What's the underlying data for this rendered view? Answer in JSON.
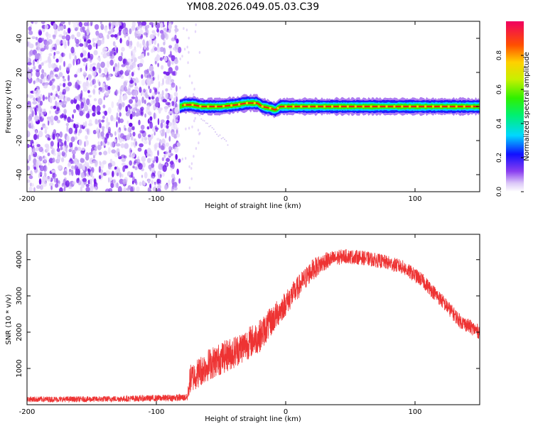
{
  "title": "YM08.2026.049.05.03.C39",
  "chart_data": [
    {
      "type": "heatmap",
      "name": "spectrogram",
      "xlabel": "Height of straight line (km)",
      "ylabel": "Frequency (Hz)",
      "xlim": [
        -200,
        150
      ],
      "ylim": [
        -50,
        50
      ],
      "xticks": [
        -200,
        -100,
        0,
        100
      ],
      "yticks": [
        -40,
        -20,
        0,
        20,
        40
      ],
      "noise_region_x": [
        -200,
        -82
      ],
      "signal_band": {
        "x_start": -82,
        "x_end": 150,
        "center_hz": [
          [
            -82,
            0
          ],
          [
            -78,
            1
          ],
          [
            -72,
            1
          ],
          [
            -65,
            0
          ],
          [
            -50,
            0
          ],
          [
            -38,
            1
          ],
          [
            -30,
            2
          ],
          [
            -22,
            2
          ],
          [
            -18,
            0
          ],
          [
            -12,
            -1
          ],
          [
            -8,
            -2
          ],
          [
            -4,
            0
          ],
          [
            0,
            0
          ],
          [
            20,
            0
          ],
          [
            60,
            0
          ],
          [
            100,
            0
          ],
          [
            150,
            0
          ]
        ],
        "half_width_hz": 2
      },
      "colorbar": {
        "label": "Normalized spectral amplitude",
        "range": [
          0.0,
          1.0
        ],
        "ticks": [
          "0.0",
          "0.2",
          "0.4",
          "0.6",
          "0.8"
        ]
      }
    },
    {
      "type": "line",
      "name": "snr",
      "xlabel": "Height of straight line (km)",
      "ylabel": "SNR (10 * v/v)",
      "xlim": [
        -200,
        150
      ],
      "ylim": [
        0,
        4700
      ],
      "xticks": [
        -200,
        -100,
        0,
        100
      ],
      "yticks": [
        1000,
        2000,
        3000,
        4000
      ],
      "color": "#ee3333",
      "series": [
        {
          "name": "SNR",
          "x": [
            -200,
            -150,
            -100,
            -76,
            -74,
            -60,
            -40,
            -20,
            0,
            20,
            30,
            45,
            60,
            75,
            90,
            105,
            120,
            135,
            150
          ],
          "y": [
            150,
            150,
            180,
            200,
            700,
            1100,
            1450,
            1900,
            2800,
            3700,
            3950,
            4100,
            4050,
            3950,
            3800,
            3450,
            2900,
            2300,
            2000
          ],
          "noise_amplitude": [
            80,
            80,
            90,
            100,
            400,
            450,
            450,
            450,
            350,
            300,
            250,
            200,
            200,
            200,
            200,
            200,
            200,
            200,
            200
          ]
        }
      ]
    }
  ]
}
